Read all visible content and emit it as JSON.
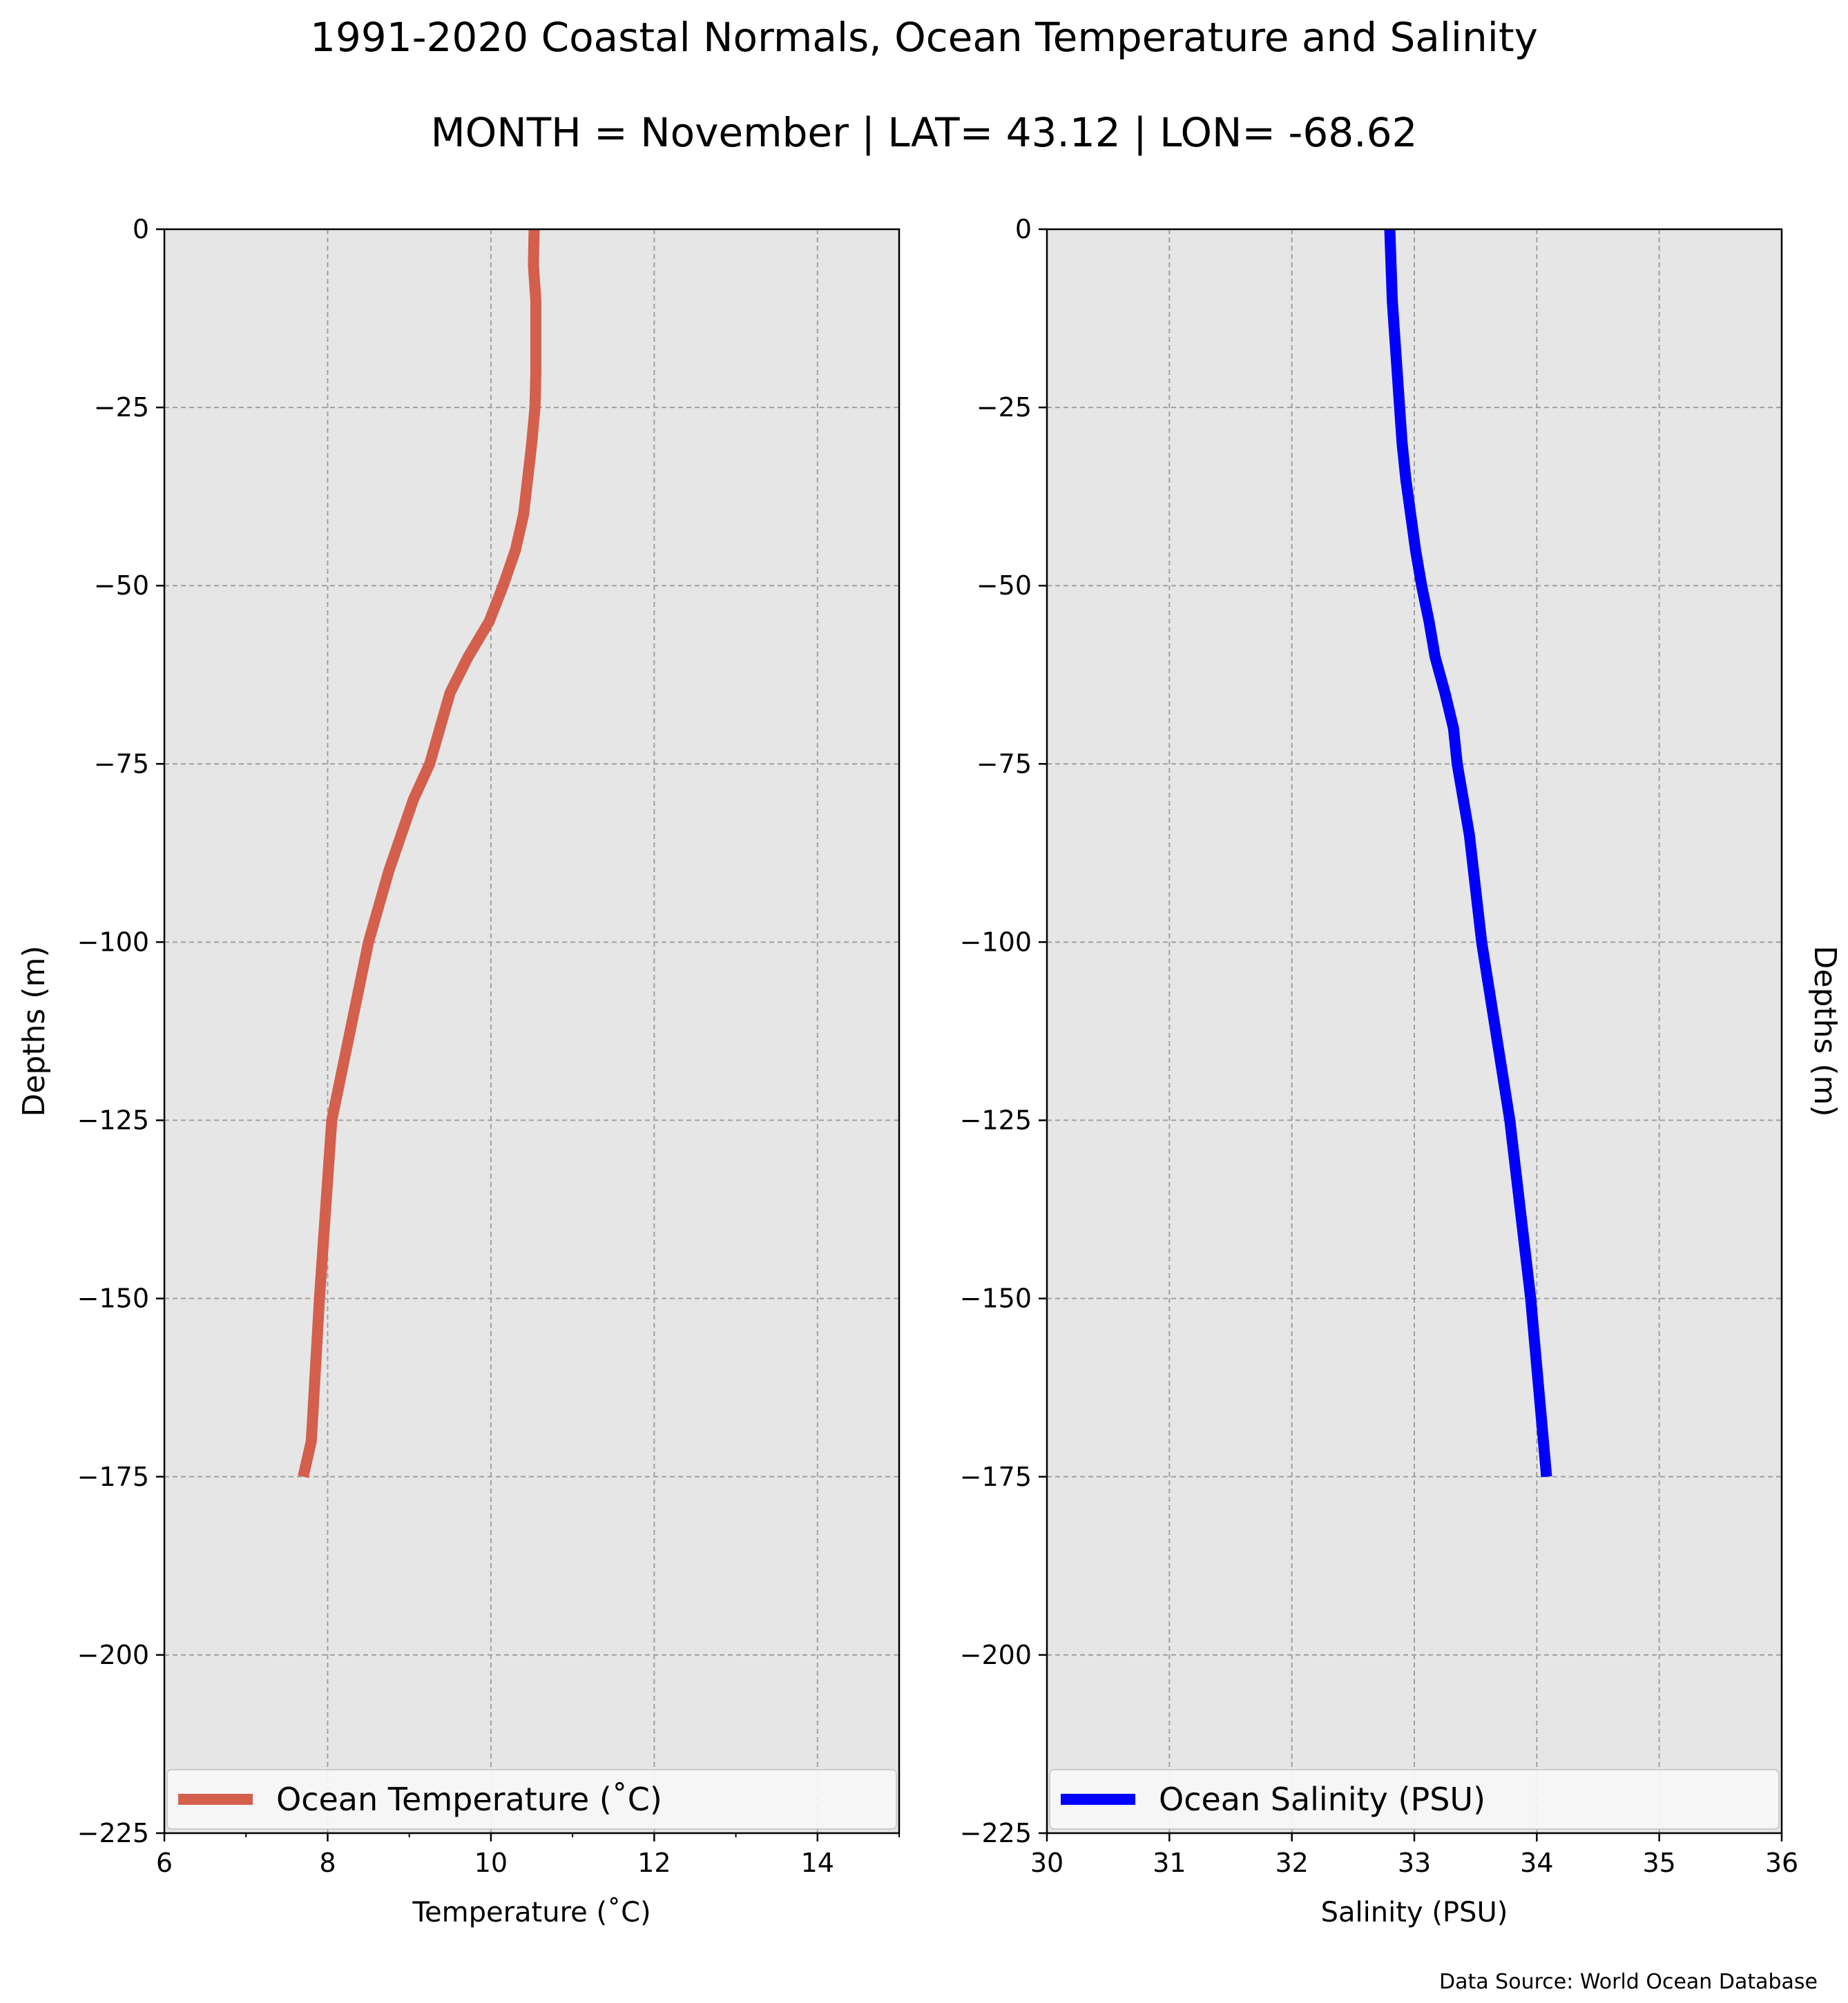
{
  "figure": {
    "title": "1991-2020 Coastal Normals, Ocean Temperature and Salinity",
    "subtitle": "MONTH = November | LAT= 43.12 | LON= -68.62",
    "source": "Data Source: World Ocean Database"
  },
  "chart_data": [
    {
      "type": "line",
      "xlabel": "Temperature (˚C)",
      "ylabel": "Depths (m)",
      "ylabel_side": "left",
      "xlim": [
        6,
        15
      ],
      "ylim": [
        -225,
        0
      ],
      "xticks": [
        "6",
        "8",
        "10",
        "12",
        "14"
      ],
      "xtick_values": [
        6,
        8,
        10,
        12,
        14
      ],
      "yticks": [
        "0",
        "−25",
        "−50",
        "−75",
        "−100",
        "−125",
        "−150",
        "−175",
        "−200",
        "−225"
      ],
      "ytick_values": [
        0,
        -25,
        -50,
        -75,
        -100,
        -125,
        -150,
        -175,
        -200,
        -225
      ],
      "grid": true,
      "legend_placement": "bottom",
      "series": [
        {
          "name": "Ocean Temperature (˚C)",
          "color": "#d35f4c",
          "x": [
            10.53,
            10.52,
            10.55,
            10.55,
            10.55,
            10.54,
            10.5,
            10.4,
            10.3,
            10.15,
            9.98,
            9.72,
            9.5,
            9.25,
            9.05,
            8.75,
            8.5,
            8.05,
            7.9,
            7.8,
            7.7
          ],
          "y": [
            0,
            -5,
            -10,
            -15,
            -20,
            -25,
            -30,
            -40,
            -45,
            -50,
            -55,
            -60,
            -65,
            -75,
            -80,
            -90,
            -100,
            -125,
            -150,
            -170,
            -175
          ]
        }
      ]
    },
    {
      "type": "line",
      "xlabel": "Salinity (PSU)",
      "ylabel": "Depths (m)",
      "ylabel_side": "right",
      "xlim": [
        30,
        36
      ],
      "ylim": [
        -225,
        0
      ],
      "xticks": [
        "30",
        "31",
        "32",
        "33",
        "34",
        "35",
        "36"
      ],
      "xtick_values": [
        30,
        31,
        32,
        33,
        34,
        35,
        36
      ],
      "yticks": [
        "0",
        "−25",
        "−50",
        "−75",
        "−100",
        "−125",
        "−150",
        "−175",
        "−200",
        "−225"
      ],
      "ytick_values": [
        0,
        -25,
        -50,
        -75,
        -100,
        -125,
        -150,
        -175,
        -200,
        -225
      ],
      "grid": true,
      "legend_placement": "bottom",
      "series": [
        {
          "name": "Ocean Salinity (PSU)",
          "color": "#0000ff",
          "x": [
            32.8,
            32.81,
            32.82,
            32.84,
            32.86,
            32.88,
            32.9,
            32.93,
            32.97,
            33.01,
            33.06,
            33.12,
            33.17,
            33.25,
            33.32,
            33.35,
            33.45,
            33.55,
            33.78,
            33.95,
            34.08
          ],
          "y": [
            0,
            -5,
            -10,
            -15,
            -20,
            -25,
            -30,
            -35,
            -40,
            -45,
            -50,
            -55,
            -60,
            -65,
            -70,
            -75,
            -85,
            -100,
            -125,
            -150,
            -175
          ]
        }
      ]
    }
  ]
}
